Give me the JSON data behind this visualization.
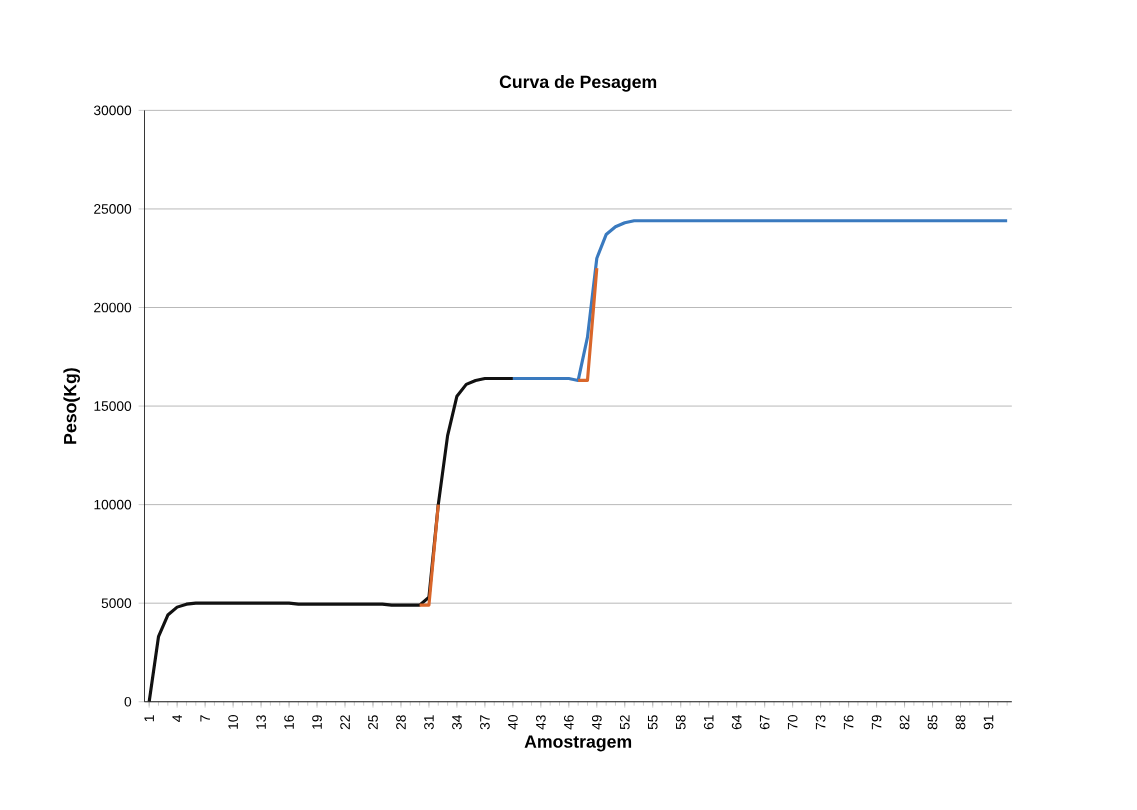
{
  "chart_data": {
    "type": "line",
    "title": "Curva de Pesagem",
    "xlabel": "Amostragem",
    "ylabel": "Peso(Kg)",
    "categories": [
      "1",
      null,
      null,
      "4",
      null,
      null,
      "7",
      null,
      null,
      "10",
      null,
      null,
      "13",
      null,
      null,
      "16",
      null,
      null,
      "19",
      null,
      null,
      "22",
      null,
      null,
      "25",
      null,
      null,
      "28",
      null,
      null,
      "31",
      null,
      null,
      "34",
      null,
      null,
      "37",
      null,
      null,
      "40",
      null,
      null,
      "43",
      null,
      null,
      "46",
      null,
      null,
      "49",
      null,
      null,
      "52",
      null,
      null,
      "55",
      null,
      null,
      "58",
      null,
      null,
      "61",
      null,
      null,
      "64",
      null,
      null,
      "67",
      null,
      null,
      "70",
      null,
      null,
      "73",
      null,
      null,
      "76",
      null,
      null,
      "79",
      null,
      null,
      "82",
      null,
      null,
      "85",
      null,
      null,
      "88",
      null,
      null,
      "91",
      null,
      null
    ],
    "series": [
      {
        "color": "#3a7abf",
        "values": [
          null,
          null,
          null,
          null,
          null,
          null,
          null,
          null,
          null,
          null,
          null,
          null,
          null,
          null,
          null,
          null,
          null,
          null,
          null,
          null,
          null,
          null,
          null,
          null,
          null,
          null,
          null,
          null,
          null,
          null,
          null,
          null,
          null,
          null,
          null,
          null,
          null,
          null,
          null,
          16400,
          16400,
          16400,
          16400,
          16400,
          16400,
          16400,
          16300,
          18500,
          22500,
          23700,
          24100,
          24300,
          24400,
          24400,
          24400,
          24400,
          24400,
          24400,
          24400,
          24400,
          24400,
          24400,
          24400,
          24400,
          24400,
          24400,
          24400,
          24400,
          24400,
          24400,
          24400,
          24400,
          24400,
          24400,
          24400,
          24400,
          24400,
          24400,
          24400,
          24400,
          24400,
          24400,
          24400,
          24400,
          24400,
          24400,
          24400,
          24400,
          24400,
          24400,
          24400,
          24400,
          24400
        ]
      },
      {
        "color": "#111111",
        "values": [
          0,
          3300,
          4400,
          4800,
          4950,
          5000,
          5000,
          5000,
          5000,
          5000,
          5000,
          5000,
          5000,
          5000,
          5000,
          5000,
          4950,
          4950,
          4950,
          4950,
          4950,
          4950,
          4950,
          4950,
          4950,
          4950,
          4900,
          4900,
          4900,
          4900,
          5300,
          10000,
          13500,
          15500,
          16100,
          16300,
          16400,
          16400,
          16400,
          16400,
          null,
          null,
          null,
          null,
          null,
          null,
          null,
          null,
          null,
          null,
          null,
          null,
          null,
          null,
          null,
          null,
          null,
          null,
          null,
          null,
          null,
          null,
          null,
          null,
          null,
          null,
          null,
          null,
          null,
          null,
          null,
          null,
          null,
          null,
          null,
          null,
          null,
          null,
          null,
          null,
          null,
          null,
          null,
          null,
          null,
          null,
          null,
          null,
          null,
          null,
          null,
          null,
          null
        ]
      },
      {
        "color": "#d9662a",
        "values": [
          null,
          null,
          null,
          null,
          null,
          null,
          null,
          null,
          null,
          null,
          null,
          null,
          null,
          null,
          null,
          null,
          null,
          null,
          null,
          null,
          null,
          null,
          null,
          null,
          null,
          null,
          null,
          null,
          null,
          4900,
          4900,
          10000,
          null,
          null,
          null,
          null,
          null,
          null,
          null,
          null,
          null,
          null,
          null,
          null,
          null,
          null,
          16300,
          16300,
          22000,
          null,
          null,
          null,
          null,
          null,
          null,
          null,
          null,
          null,
          null,
          null,
          null,
          null,
          null,
          null,
          null,
          null,
          null,
          null,
          null,
          null,
          null,
          null,
          null,
          null,
          null,
          null,
          null,
          null,
          null,
          null,
          null,
          null,
          null,
          null,
          null,
          null,
          null,
          null,
          null,
          null,
          null,
          null,
          null
        ]
      }
    ],
    "ylim": [
      0,
      30000
    ],
    "yticks": [
      0,
      5000,
      10000,
      15000,
      20000,
      25000,
      30000
    ],
    "grid": "y",
    "marker": "none",
    "line_style": "solid"
  }
}
